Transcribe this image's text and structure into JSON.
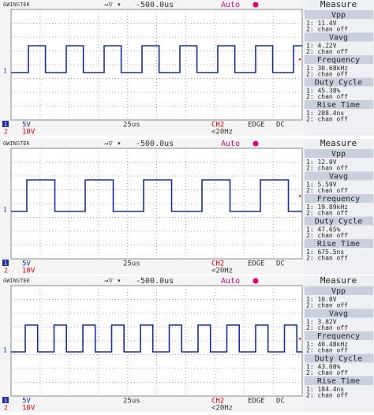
{
  "panels": [
    {
      "brand": "GWINSTEK",
      "timebase_offset": "-500.0us",
      "mode": "Auto",
      "menu_title": "Measure",
      "ch1_label": "1",
      "ch2_label": "2",
      "measurements": [
        {
          "label": "Vpp",
          "ch1": "1: 11.4V",
          "ch2": "2: chan off"
        },
        {
          "label": "Vavg",
          "ch1": "1: 4.22V",
          "ch2": "2: chan off"
        },
        {
          "label": "Frequency",
          "ch1": "1: 30.68kHz",
          "ch2": "2: chan off"
        },
        {
          "label": "Duty Cycle",
          "ch1": "1: 45.38%",
          "ch2": "2: chan off"
        },
        {
          "label": "Rise Time",
          "ch1": "1: 288.4ns",
          "ch2": "2: chan off"
        }
      ],
      "ch1_scale": "5V",
      "time_scale": "25us",
      "trigger_source": "CH2",
      "trigger_type": "EDGE",
      "coupling": "DC",
      "ch2_scale": "10V",
      "trigger_filter": "<20Hz"
    },
    {
      "brand": "GWINSTEK",
      "timebase_offset": "-500.0us",
      "mode": "Auto",
      "menu_title": "Measure",
      "ch1_label": "1",
      "ch2_label": "2",
      "measurements": [
        {
          "label": "Vpp",
          "ch1": "1: 12.0V",
          "ch2": "2: chan off"
        },
        {
          "label": "Vavg",
          "ch1": "1: 5.59V",
          "ch2": "2: chan off"
        },
        {
          "label": "Frequency",
          "ch1": "1: 19.89kHz",
          "ch2": "2: chan off"
        },
        {
          "label": "Duty Cycle",
          "ch1": "1: 47.65%",
          "ch2": "2: chan off"
        },
        {
          "label": "Rise Time",
          "ch1": "1: 675.5ns",
          "ch2": "2: chan off"
        }
      ],
      "ch1_scale": "5V",
      "time_scale": "25us",
      "trigger_source": "CH2",
      "trigger_type": "EDGE",
      "coupling": "DC",
      "ch2_scale": "10V",
      "trigger_filter": "<20Hz"
    },
    {
      "brand": "GWINSTEK",
      "timebase_offset": "-500.0us",
      "mode": "Auto",
      "menu_title": "Measure",
      "ch1_label": "1",
      "ch2_label": "2",
      "measurements": [
        {
          "label": "Vpp",
          "ch1": "1: 10.0V",
          "ch2": "2: chan off"
        },
        {
          "label": "Vavg",
          "ch1": "1: 3.82V",
          "ch2": "2: chan off"
        },
        {
          "label": "Frequency",
          "ch1": "1: 40.48kHz",
          "ch2": "2: chan off"
        },
        {
          "label": "Duty Cycle",
          "ch1": "1: 43.08%",
          "ch2": "2: chan off"
        },
        {
          "label": "Rise Time",
          "ch1": "1: 184.4ns",
          "ch2": "2: chan off"
        }
      ],
      "ch1_scale": "5V",
      "time_scale": "25us",
      "trigger_source": "CH2",
      "trigger_type": "EDGE",
      "coupling": "DC",
      "ch2_scale": "10V",
      "trigger_filter": "<20Hz"
    }
  ]
}
